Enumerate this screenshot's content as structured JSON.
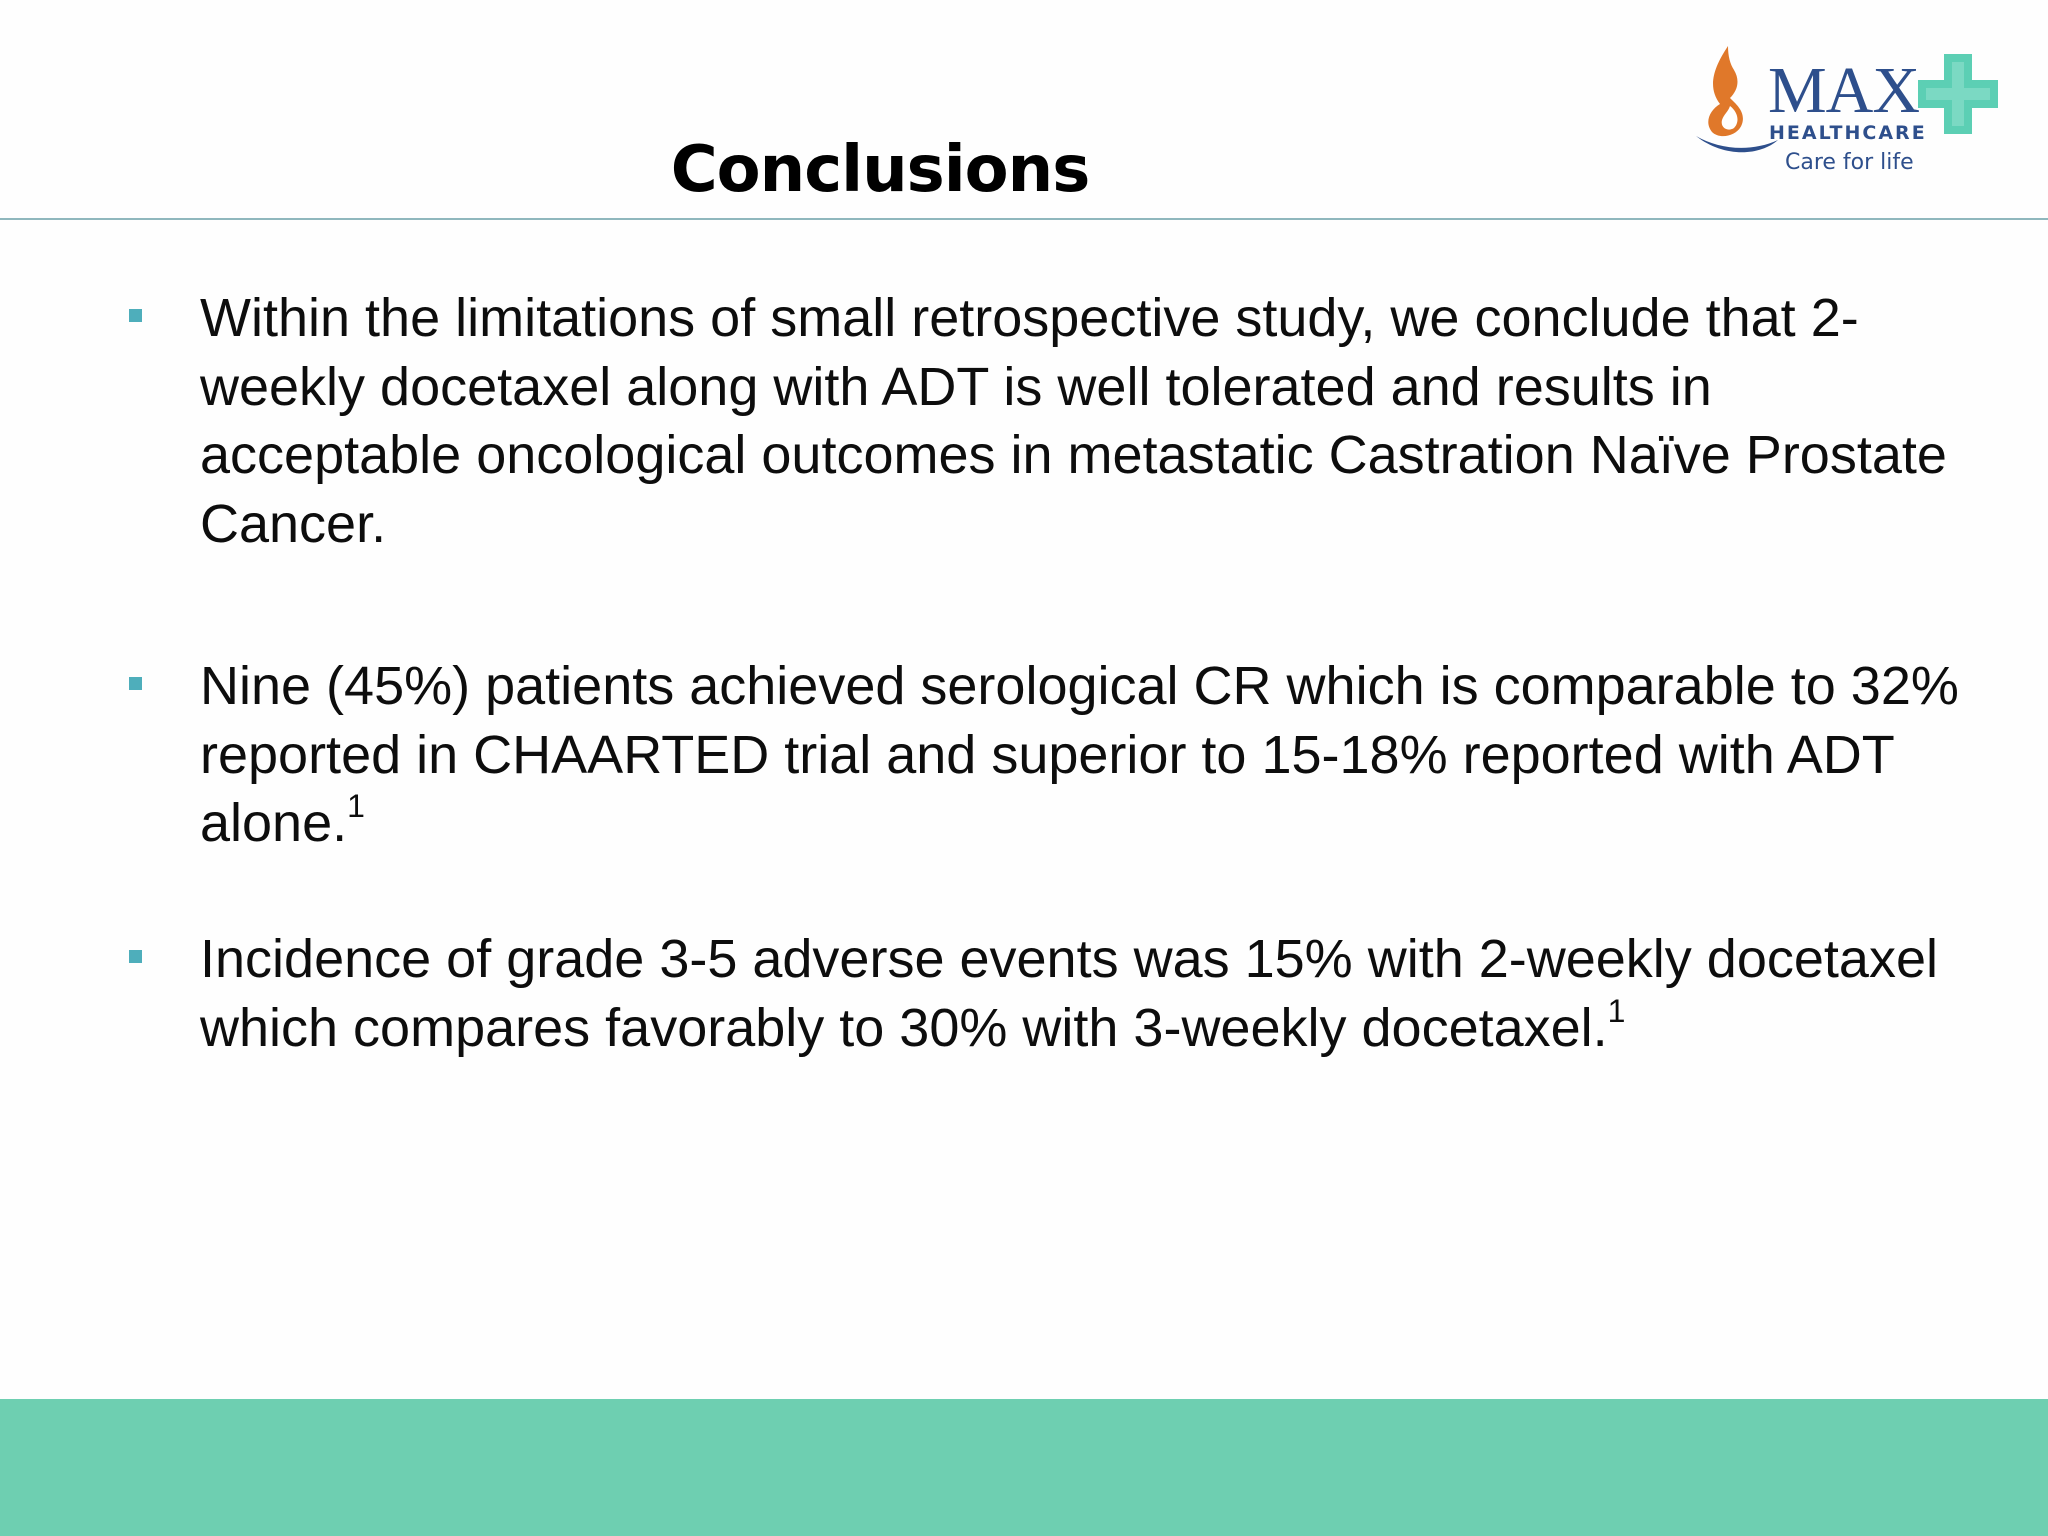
{
  "slide": {
    "title": "Conclusions"
  },
  "logo": {
    "brand": "MAX",
    "subtitle": "HEALTHCARE",
    "tagline": "Care for life"
  },
  "bullets": [
    {
      "text": "Within the limitations of small retrospective study, we conclude that 2-weekly docetaxel along with ADT is well tolerated and results in acceptable oncological outcomes in metastatic Castration Naïve Prostate Cancer.",
      "superscript": ""
    },
    {
      "text": "Nine (45%) patients achieved serological CR which is comparable to 32% reported in CHAARTED trial and superior to 15-18% reported with ADT alone.",
      "superscript": "1"
    },
    {
      "text": "Incidence of grade 3-5 adverse events was 15% with 2-weekly docetaxel which compares favorably to 30% with 3-weekly docetaxel.",
      "superscript": "1"
    }
  ],
  "colors": {
    "accent": "#4eaebb",
    "footer": "#6ecfb1",
    "logo_blue": "#2e4f8c",
    "logo_flame": "#e0782a",
    "logo_cross": "#5ccfb4"
  },
  "icons": {
    "logo_flame": "flame-icon",
    "logo_cross": "medical-cross-icon"
  }
}
